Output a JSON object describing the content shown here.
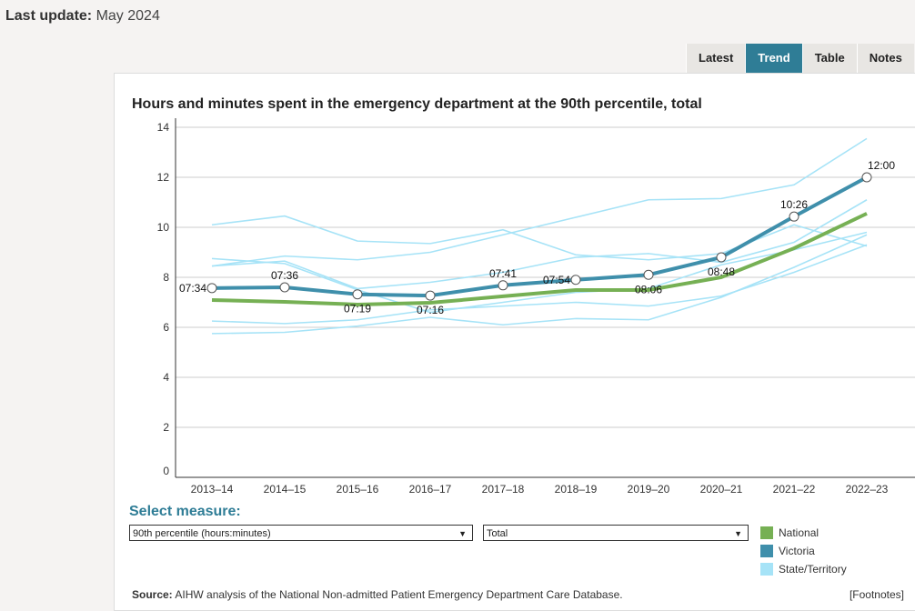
{
  "header": {
    "last_update_label": "Last update:",
    "last_update_value": "May 2024"
  },
  "tabs": [
    {
      "label": "Latest"
    },
    {
      "label": "Trend",
      "active": true
    },
    {
      "label": "Table"
    },
    {
      "label": "Notes"
    }
  ],
  "chart_data": {
    "type": "line",
    "title": "Hours and minutes spent in the emergency department at the 90th percentile, total",
    "categories": [
      "2013–14",
      "2014–15",
      "2015–16",
      "2016–17",
      "2017–18",
      "2018–19",
      "2019–20",
      "2020–21",
      "2021–22",
      "2022–23"
    ],
    "ylim": [
      0,
      14
    ],
    "yticks": [
      0,
      2,
      4,
      6,
      8,
      10,
      12,
      14
    ],
    "grid": true,
    "legend_position": "bottom-right",
    "series": [
      {
        "name": "State/Territory",
        "color": "#a6e3f7",
        "values": [
          10.1,
          10.45,
          9.45,
          9.35,
          9.9,
          8.9,
          8.7,
          8.95,
          10.1,
          9.25
        ]
      },
      {
        "name": "State/Territory",
        "color": "#a6e3f7",
        "values": [
          8.45,
          8.85,
          8.7,
          9.0,
          9.7,
          10.4,
          11.1,
          11.15,
          11.7,
          13.55
        ]
      },
      {
        "name": "State/Territory",
        "color": "#a6e3f7",
        "values": [
          8.75,
          8.55,
          7.5,
          6.6,
          7.0,
          7.4,
          7.55,
          8.5,
          9.1,
          9.8
        ]
      },
      {
        "name": "State/Territory",
        "color": "#a6e3f7",
        "values": [
          8.45,
          8.65,
          7.55,
          7.8,
          8.2,
          8.8,
          8.95,
          8.6,
          9.4,
          11.1
        ]
      },
      {
        "name": "State/Territory",
        "color": "#a6e3f7",
        "values": [
          6.25,
          6.15,
          6.3,
          6.7,
          6.85,
          7.0,
          6.85,
          7.25,
          8.2,
          9.3
        ]
      },
      {
        "name": "State/Territory",
        "color": "#a6e3f7",
        "values": [
          5.75,
          5.8,
          6.05,
          6.4,
          6.1,
          6.35,
          6.3,
          7.2,
          8.4,
          9.7
        ]
      },
      {
        "name": "National",
        "color": "#76b054",
        "values": [
          7.09,
          7.02,
          6.91,
          6.98,
          7.24,
          7.49,
          7.49,
          8.0,
          9.16,
          10.55
        ]
      },
      {
        "name": "Victoria",
        "color": "#3f8fab",
        "values": [
          7.57,
          7.6,
          7.32,
          7.27,
          7.68,
          7.9,
          8.1,
          8.8,
          10.43,
          12.0
        ],
        "labels": [
          "07:34",
          "07:36",
          "07:19",
          "07:16",
          "07:41",
          "07:54",
          "08:06",
          "08:48",
          "10:26",
          "12:00"
        ]
      }
    ]
  },
  "controls": {
    "select_label": "Select measure:",
    "measure": "90th percentile (hours:minutes)",
    "breakdown": "Total",
    "arrow": "▼"
  },
  "legend": [
    {
      "label": "National",
      "color": "#76b054"
    },
    {
      "label": "Victoria",
      "color": "#3f8fab"
    },
    {
      "label": "State/Territory",
      "color": "#a6e3f7"
    }
  ],
  "footer": {
    "source_label": "Source:",
    "source_text": " AIHW analysis of the National Non-admitted Patient Emergency Department Care Database.",
    "footnotes": "[Footnotes]"
  }
}
